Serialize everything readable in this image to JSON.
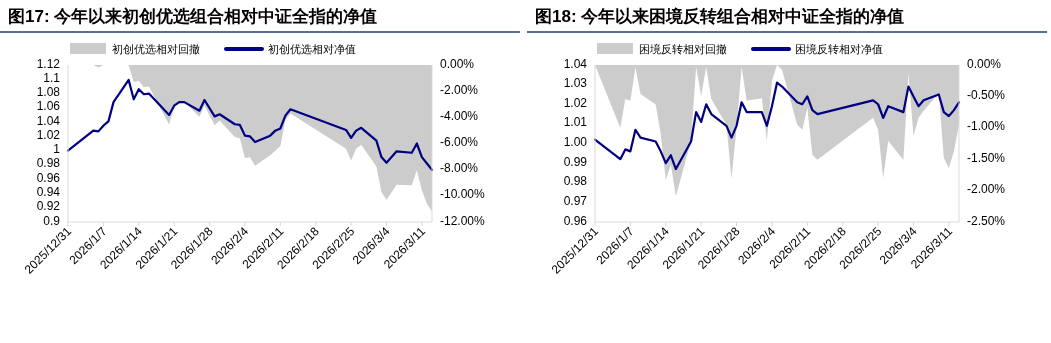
{
  "chart_data": [
    {
      "type": "line",
      "title": "图17:  今年以来初创优选组合相对中证全指的净值",
      "legend": "top",
      "grid": false,
      "xlim": [
        "2025-12-31",
        "2026-03-13"
      ],
      "xticks": [
        {
          "value": "2025-12-31",
          "label": "2025/12/31"
        },
        {
          "value": "2026-01-07",
          "label": "2026/1/7"
        },
        {
          "value": "2026-01-14",
          "label": "2026/1/14"
        },
        {
          "value": "2026-01-21",
          "label": "2026/1/21"
        },
        {
          "value": "2026-01-28",
          "label": "2026/1/28"
        },
        {
          "value": "2026-02-04",
          "label": "2026/2/4"
        },
        {
          "value": "2026-02-11",
          "label": "2026/2/11"
        },
        {
          "value": "2026-02-18",
          "label": "2026/2/18"
        },
        {
          "value": "2026-02-25",
          "label": "2026/2/25"
        },
        {
          "value": "2026-03-04",
          "label": "2026/3/4"
        },
        {
          "value": "2026-03-11",
          "label": "2026/3/11"
        }
      ],
      "ylim": [
        0.9,
        1.12
      ],
      "yticks": [
        0.9,
        0.92,
        0.94,
        0.96,
        0.98,
        1,
        1.02,
        1.04,
        1.06,
        1.08,
        1.1,
        1.12
      ],
      "y2lim": [
        -12,
        0
      ],
      "y2ticks": [
        {
          "value": -12,
          "label": "-12.00%"
        },
        {
          "value": -10,
          "label": "-10.00%"
        },
        {
          "value": -8,
          "label": "-8.00%"
        },
        {
          "value": -6,
          "label": "-6.00%"
        },
        {
          "value": -4,
          "label": "-4.00%"
        },
        {
          "value": -2,
          "label": "-2.00%"
        },
        {
          "value": 0,
          "label": "0.00%"
        }
      ],
      "series": [
        {
          "name": "初创优选相对回撤",
          "type": "area",
          "axis": "y2",
          "color": "#cccccc",
          "x": [
            "2025-12-31",
            "2026-01-05",
            "2026-01-06",
            "2026-01-07",
            "2026-01-08",
            "2026-01-09",
            "2026-01-12",
            "2026-01-13",
            "2026-01-14",
            "2026-01-15",
            "2026-01-16",
            "2026-01-20",
            "2026-01-21",
            "2026-01-22",
            "2026-01-23",
            "2026-01-26",
            "2026-01-27",
            "2026-01-29",
            "2026-01-30",
            "2026-02-02",
            "2026-02-03",
            "2026-02-04",
            "2026-02-05",
            "2026-02-06",
            "2026-02-09",
            "2026-02-10",
            "2026-02-11",
            "2026-02-12",
            "2026-02-13",
            "2026-02-24",
            "2026-02-25",
            "2026-02-26",
            "2026-02-27",
            "2026-03-02",
            "2026-03-03",
            "2026-03-04",
            "2026-03-06",
            "2026-03-09",
            "2026-03-10",
            "2026-03-11",
            "2026-03-12",
            "2026-03-13"
          ],
          "values": [
            0,
            0,
            -0.2,
            0,
            0,
            0,
            0,
            -1.3,
            -1.2,
            -1.7,
            -1.65,
            -4.55,
            -3.2,
            -2.8,
            -2.8,
            -3.95,
            -3.1,
            -4.6,
            -4.25,
            -5.5,
            -5.6,
            -7.1,
            -7.05,
            -7.7,
            -6.9,
            -6.55,
            -6.2,
            -4.25,
            -3.7,
            -6.4,
            -7.3,
            -6.4,
            -6.1,
            -7.75,
            -9.7,
            -10.3,
            -9.15,
            -9.2,
            -8.05,
            -9.6,
            -10.6,
            -11.2
          ]
        },
        {
          "name": "初创优选相对净值",
          "type": "line",
          "color": "#000080",
          "x": [
            "2025-12-31",
            "2026-01-05",
            "2026-01-06",
            "2026-01-07",
            "2026-01-08",
            "2026-01-09",
            "2026-01-12",
            "2026-01-13",
            "2026-01-14",
            "2026-01-15",
            "2026-01-16",
            "2026-01-20",
            "2026-01-21",
            "2026-01-22",
            "2026-01-23",
            "2026-01-26",
            "2026-01-27",
            "2026-01-29",
            "2026-01-30",
            "2026-02-02",
            "2026-02-03",
            "2026-02-04",
            "2026-02-05",
            "2026-02-06",
            "2026-02-09",
            "2026-02-10",
            "2026-02-11",
            "2026-02-12",
            "2026-02-13",
            "2026-02-24",
            "2026-02-25",
            "2026-02-26",
            "2026-02-27",
            "2026-03-02",
            "2026-03-03",
            "2026-03-04",
            "2026-03-06",
            "2026-03-09",
            "2026-03-10",
            "2026-03-11",
            "2026-03-12",
            "2026-03-13"
          ],
          "values": [
            1.0,
            1.028,
            1.027,
            1.035,
            1.041,
            1.068,
            1.099,
            1.072,
            1.086,
            1.079,
            1.08,
            1.05,
            1.063,
            1.068,
            1.068,
            1.056,
            1.071,
            1.048,
            1.051,
            1.037,
            1.036,
            1.021,
            1.02,
            1.012,
            1.021,
            1.028,
            1.031,
            1.049,
            1.058,
            1.029,
            1.018,
            1.028,
            1.032,
            1.014,
            0.991,
            0.983,
            0.999,
            0.997,
            1.01,
            0.991,
            0.982,
            0.973
          ]
        }
      ]
    },
    {
      "type": "line",
      "title": "图18:  今年以来困境反转组合相对中证全指的净值",
      "legend": "top",
      "grid": false,
      "xlim": [
        "2025-12-31",
        "2026-03-13"
      ],
      "xticks": [
        {
          "value": "2025-12-31",
          "label": "2025/12/31"
        },
        {
          "value": "2026-01-07",
          "label": "2026/1/7"
        },
        {
          "value": "2026-01-14",
          "label": "2026/1/14"
        },
        {
          "value": "2026-01-21",
          "label": "2026/1/21"
        },
        {
          "value": "2026-01-28",
          "label": "2026/1/28"
        },
        {
          "value": "2026-02-04",
          "label": "2026/2/4"
        },
        {
          "value": "2026-02-11",
          "label": "2026/2/11"
        },
        {
          "value": "2026-02-18",
          "label": "2026/2/18"
        },
        {
          "value": "2026-02-25",
          "label": "2026/2/25"
        },
        {
          "value": "2026-03-04",
          "label": "2026/3/4"
        },
        {
          "value": "2026-03-11",
          "label": "2026/3/11"
        }
      ],
      "ylim": [
        0.96,
        1.04
      ],
      "yticks": [
        {
          "value": 0.96,
          "label": "0.96"
        },
        {
          "value": 0.97,
          "label": "0.97"
        },
        {
          "value": 0.98,
          "label": "0.98"
        },
        {
          "value": 0.99,
          "label": "0.99"
        },
        {
          "value": 1,
          "label": "1.00"
        },
        {
          "value": 1.01,
          "label": "1.01"
        },
        {
          "value": 1.02,
          "label": "1.02"
        },
        {
          "value": 1.03,
          "label": "1.03"
        },
        {
          "value": 1.04,
          "label": "1.04"
        }
      ],
      "y2lim": [
        -2.5,
        0
      ],
      "y2ticks": [
        {
          "value": -2.5,
          "label": "-2.50%"
        },
        {
          "value": -2,
          "label": "-2.00%"
        },
        {
          "value": -1.5,
          "label": "-1.50%"
        },
        {
          "value": -1,
          "label": "-1.00%"
        },
        {
          "value": -0.5,
          "label": "-0.50%"
        },
        {
          "value": 0,
          "label": "0.00%"
        }
      ],
      "series": [
        {
          "name": "困境反转相对回撤",
          "type": "area",
          "axis": "y2",
          "color": "#cccccc",
          "x": [
            "2025-12-31",
            "2026-01-05",
            "2026-01-06",
            "2026-01-07",
            "2026-01-08",
            "2026-01-09",
            "2026-01-12",
            "2026-01-13",
            "2026-01-14",
            "2026-01-15",
            "2026-01-16",
            "2026-01-19",
            "2026-01-20",
            "2026-01-21",
            "2026-01-22",
            "2026-01-23",
            "2026-01-26",
            "2026-01-27",
            "2026-01-28",
            "2026-01-29",
            "2026-01-30",
            "2026-02-02",
            "2026-02-03",
            "2026-02-04",
            "2026-02-05",
            "2026-02-06",
            "2026-02-09",
            "2026-02-10",
            "2026-02-11",
            "2026-02-12",
            "2026-02-13",
            "2026-02-24",
            "2026-02-25",
            "2026-02-26",
            "2026-02-27",
            "2026-03-02",
            "2026-03-03",
            "2026-03-04",
            "2026-03-05",
            "2026-03-06",
            "2026-03-09",
            "2026-03-10",
            "2026-03-11",
            "2026-03-12",
            "2026-03-13"
          ],
          "values": [
            0,
            -1.0,
            -0.54,
            -0.57,
            -0.04,
            -0.46,
            -0.63,
            -1.1,
            -1.83,
            -1.59,
            -2.09,
            -1.21,
            -0.03,
            -0.49,
            -0.03,
            -0.54,
            -0.95,
            -1.81,
            -1.0,
            -0.03,
            -0.57,
            -0.53,
            -1.21,
            -0.25,
            0,
            -0.08,
            -0.95,
            -1.03,
            -0.68,
            -1.43,
            -1.51,
            -0.84,
            -1.03,
            -1.8,
            -1.21,
            -1.51,
            -0.14,
            -1.13,
            -0.84,
            -0.73,
            -0.45,
            -1.48,
            -1.64,
            -1.37,
            -0.95
          ]
        },
        {
          "name": "困境反转相对净值",
          "type": "line",
          "color": "#000080",
          "x": [
            "2025-12-31",
            "2026-01-05",
            "2026-01-06",
            "2026-01-07",
            "2026-01-08",
            "2026-01-09",
            "2026-01-12",
            "2026-01-13",
            "2026-01-14",
            "2026-01-15",
            "2026-01-16",
            "2026-01-19",
            "2026-01-20",
            "2026-01-21",
            "2026-01-22",
            "2026-01-23",
            "2026-01-26",
            "2026-01-27",
            "2026-01-28",
            "2026-01-29",
            "2026-01-30",
            "2026-02-02",
            "2026-02-03",
            "2026-02-04",
            "2026-02-05",
            "2026-02-06",
            "2026-02-09",
            "2026-02-10",
            "2026-02-11",
            "2026-02-12",
            "2026-02-13",
            "2026-02-24",
            "2026-02-25",
            "2026-02-26",
            "2026-02-27",
            "2026-03-02",
            "2026-03-03",
            "2026-03-04",
            "2026-03-05",
            "2026-03-06",
            "2026-03-09",
            "2026-03-10",
            "2026-03-11",
            "2026-03-12",
            "2026-03-13"
          ],
          "values": [
            1.002,
            0.992,
            0.997,
            0.996,
            1.007,
            1.003,
            1.001,
            0.996,
            0.99,
            0.994,
            0.987,
            1.001,
            1.016,
            1.011,
            1.02,
            1.015,
            1.009,
            1.003,
            1.009,
            1.021,
            1.016,
            1.016,
            1.009,
            1.019,
            1.031,
            1.029,
            1.021,
            1.02,
            1.024,
            1.017,
            1.015,
            1.022,
            1.02,
            1.013,
            1.019,
            1.016,
            1.029,
            1.024,
            1.019,
            1.022,
            1.025,
            1.016,
            1.014,
            1.017,
            1.021
          ]
        }
      ]
    }
  ]
}
